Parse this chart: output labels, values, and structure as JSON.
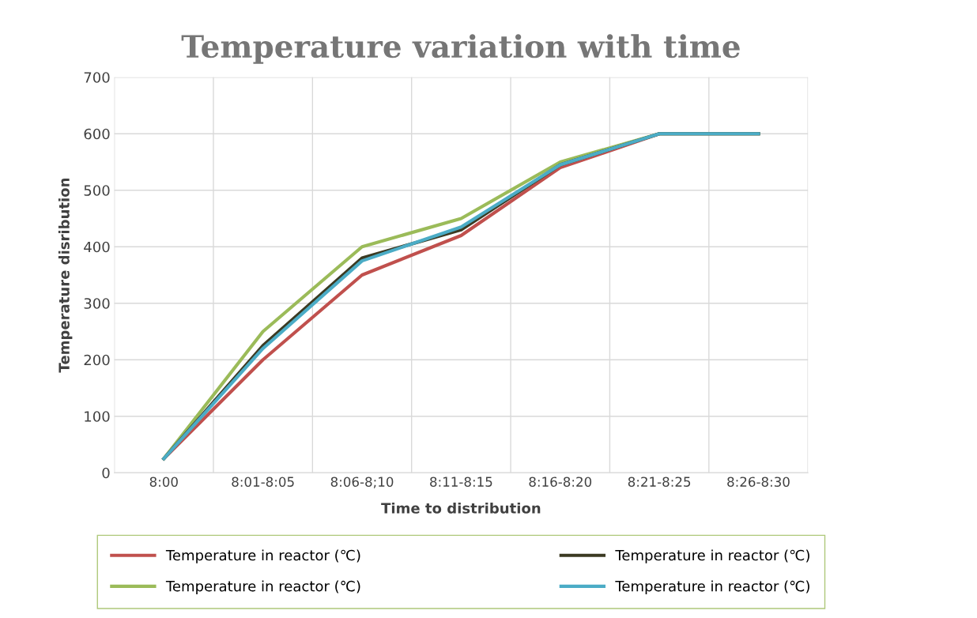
{
  "chart_data": {
    "type": "line",
    "title": "Temperature variation with time",
    "xlabel": "Time to distribution",
    "ylabel": "Temperature disribution",
    "categories": [
      "8:00",
      "8:01-8:05",
      "8:06-8;10",
      "8:11-8:15",
      "8:16-8:20",
      "8:21-8:25",
      "8:26-8:30"
    ],
    "series": [
      {
        "name": "Temperature in reactor (℃)",
        "color": "#c0504d",
        "values": [
          25,
          200,
          350,
          420,
          540,
          600,
          600
        ]
      },
      {
        "name": "Temperature in reactor (℃)",
        "color": "#9bbb59",
        "values": [
          25,
          250,
          400,
          450,
          550,
          600,
          600
        ]
      },
      {
        "name": "Temperature in reactor (℃)",
        "color": "#3b3a22",
        "values": [
          25,
          225,
          380,
          430,
          545,
          600,
          600
        ]
      },
      {
        "name": "Temperature in reactor (℃)",
        "color": "#4bacc6",
        "values": [
          25,
          220,
          375,
          435,
          545,
          600,
          600
        ]
      }
    ],
    "ylim": [
      0,
      700
    ],
    "yticks": [
      0,
      100,
      200,
      300,
      400,
      500,
      600,
      700
    ],
    "grid": true,
    "legend": "bottom",
    "marker": "none",
    "line_style": "solid"
  }
}
